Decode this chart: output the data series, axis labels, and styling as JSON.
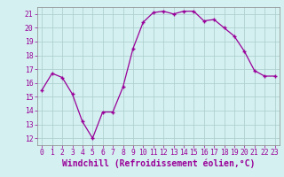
{
  "x": [
    0,
    1,
    2,
    3,
    4,
    5,
    6,
    7,
    8,
    9,
    10,
    11,
    12,
    13,
    14,
    15,
    16,
    17,
    18,
    19,
    20,
    21,
    22,
    23
  ],
  "y": [
    15.5,
    16.7,
    16.4,
    15.2,
    13.2,
    12.0,
    13.9,
    13.9,
    15.7,
    18.5,
    20.4,
    21.1,
    21.2,
    21.0,
    21.2,
    21.2,
    20.5,
    20.6,
    20.0,
    19.4,
    18.3,
    16.9,
    16.5,
    16.5
  ],
  "line_color": "#990099",
  "marker": "+",
  "bg_color": "#d4f0f0",
  "grid_color": "#aacccc",
  "xlabel": "Windchill (Refroidissement éolien,°C)",
  "xlim": [
    -0.5,
    23.5
  ],
  "ylim": [
    11.5,
    21.5
  ],
  "yticks": [
    12,
    13,
    14,
    15,
    16,
    17,
    18,
    19,
    20,
    21
  ],
  "xticks": [
    0,
    1,
    2,
    3,
    4,
    5,
    6,
    7,
    8,
    9,
    10,
    11,
    12,
    13,
    14,
    15,
    16,
    17,
    18,
    19,
    20,
    21,
    22,
    23
  ],
  "xlabel_color": "#990099",
  "tick_color": "#990099",
  "axis_color": "#888888",
  "tick_fontsize": 5.8,
  "xlabel_fontsize": 7.0
}
